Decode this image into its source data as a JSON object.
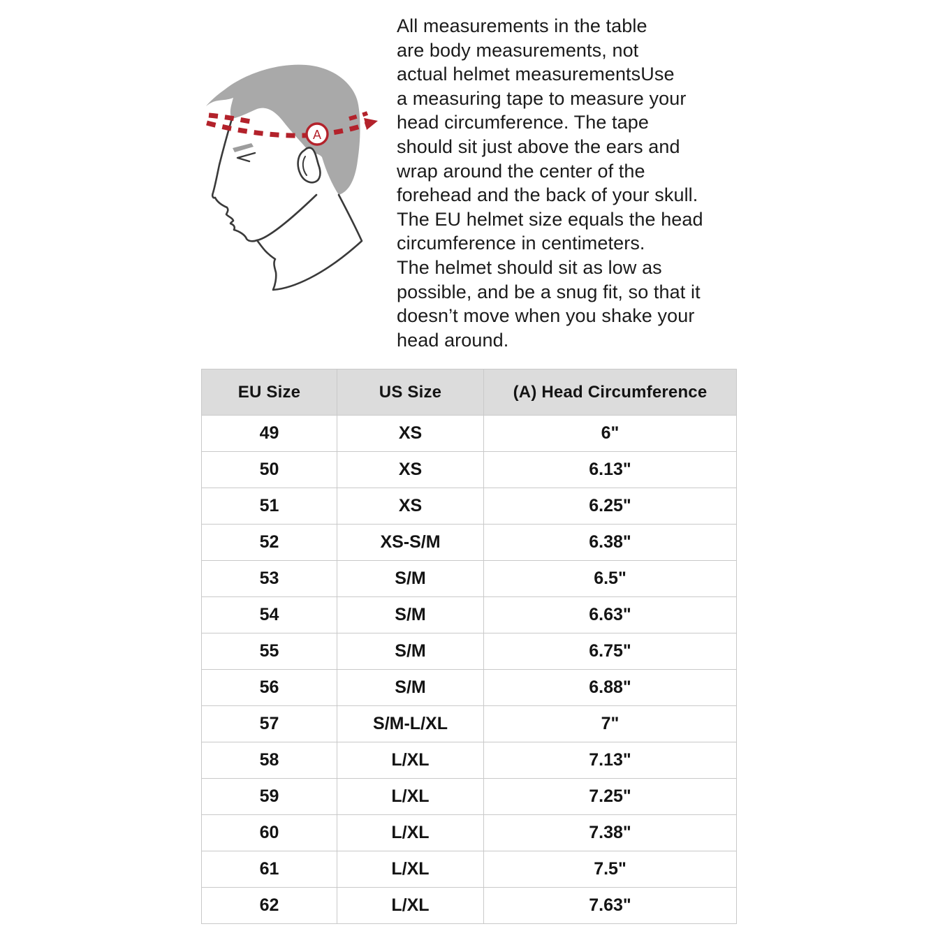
{
  "illustration": {
    "name": "head-circumference-measurement",
    "marker_label": "A",
    "colors": {
      "hair": "#a9a9a9",
      "outline": "#3a3a3a",
      "tape_red": "#b3222b",
      "eyebrow": "#9d9d9d"
    }
  },
  "description": {
    "text": "All measurements in the table\nare body measurements, not\nactual helmet measurementsUse\na measuring tape to measure your\nhead circumference. The tape\nshould sit just above the ears and\nwrap around the center of the\nforehead and the back of your skull.\nThe EU helmet size equals the head\ncircumference in centimeters.\nThe helmet should sit as low as\npossible, and be a snug fit, so that it\ndoesn’t move when you shake your\nhead around."
  },
  "table": {
    "headers": [
      "EU Size",
      "US Size",
      "(A) Head Circumference"
    ],
    "rows": [
      [
        "49",
        "XS",
        "6\""
      ],
      [
        "50",
        "XS",
        "6.13\""
      ],
      [
        "51",
        "XS",
        "6.25\""
      ],
      [
        "52",
        "XS-S/M",
        "6.38\""
      ],
      [
        "53",
        "S/M",
        "6.5\""
      ],
      [
        "54",
        "S/M",
        "6.63\""
      ],
      [
        "55",
        "S/M",
        "6.75\""
      ],
      [
        "56",
        "S/M",
        "6.88\""
      ],
      [
        "57",
        "S/M-L/XL",
        "7\""
      ],
      [
        "58",
        "L/XL",
        "7.13\""
      ],
      [
        "59",
        "L/XL",
        "7.25\""
      ],
      [
        "60",
        "L/XL",
        "7.38\""
      ],
      [
        "61",
        "L/XL",
        "7.5\""
      ],
      [
        "62",
        "L/XL",
        "7.63\""
      ]
    ]
  }
}
